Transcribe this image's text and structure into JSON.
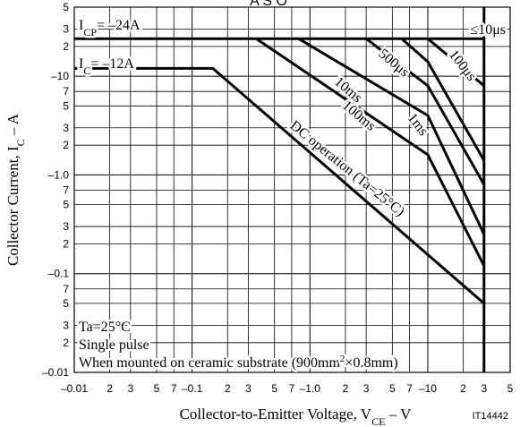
{
  "chart_data": {
    "type": "line",
    "title": "A S O",
    "x_label": [
      {
        "text": "Collector-to-Emitter Voltage, V"
      },
      {
        "text": "CE",
        "style": "sub"
      },
      {
        "text": " – V"
      }
    ],
    "y_label": [
      {
        "text": "Collector Current, I"
      },
      {
        "text": "C",
        "style": "sub"
      },
      {
        "text": " – A"
      }
    ],
    "figure_id": "IT14442",
    "xscale": "log",
    "yscale": "log",
    "grid": true,
    "xlim": [
      0.01,
      50
    ],
    "ylim": [
      0.01,
      50
    ],
    "xticks": [
      {
        "value": 0.01,
        "label": "–0.01"
      },
      0.02,
      0.03,
      0.05,
      0.07,
      {
        "value": 0.1,
        "label": "–0.1"
      },
      0.2,
      0.3,
      0.5,
      0.7,
      {
        "value": 1,
        "label": "–1.0"
      },
      2,
      3,
      5,
      7,
      {
        "value": 10,
        "label": "–10"
      },
      20,
      30,
      50
    ],
    "xtick_labels": [
      null,
      "2",
      "3",
      "5",
      "7",
      null,
      "2",
      "3",
      "5",
      "7",
      null,
      "2",
      "3",
      "5",
      "7",
      null,
      "2",
      "3",
      "5"
    ],
    "yticks": [
      {
        "value": 0.01,
        "label": "–0.01"
      },
      0.02,
      0.03,
      0.05,
      0.07,
      {
        "value": 0.1,
        "label": "–0.1"
      },
      0.2,
      0.3,
      0.5,
      0.7,
      {
        "value": 1,
        "label": "–1.0"
      },
      2,
      3,
      5,
      7,
      {
        "value": 10,
        "label": "–10"
      },
      20,
      30,
      50
    ],
    "ytick_labels": [
      null,
      "2",
      "3",
      "5",
      "7",
      null,
      "2",
      "3",
      "5",
      "7",
      null,
      "2",
      "3",
      "5",
      "7",
      null,
      "2",
      "3",
      "5"
    ],
    "series": [
      {
        "name": "DC operation (Ta=25°C)",
        "color": "#000000",
        "x": [
          0.01,
          0.15,
          30
        ],
        "values": [
          12,
          12,
          0.05
        ]
      },
      {
        "name": "100ms",
        "color": "#000000",
        "x": [
          0.35,
          10,
          30
        ],
        "values": [
          24,
          1.6,
          0.12
        ]
      },
      {
        "name": "10ms",
        "color": "#000000",
        "x": [
          0.8,
          10,
          30
        ],
        "values": [
          24,
          4,
          0.25
        ]
      },
      {
        "name": "1ms",
        "color": "#000000",
        "x": [
          3,
          10,
          30
        ],
        "values": [
          24,
          8,
          0.8
        ]
      },
      {
        "name": "500μs",
        "color": "#000000",
        "x": [
          6,
          10,
          30
        ],
        "values": [
          24,
          14,
          1.4
        ]
      },
      {
        "name": "100μs",
        "color": "#000000",
        "x": [
          10,
          30
        ],
        "values": [
          24,
          8
        ]
      },
      {
        "name": "I_CP limit",
        "color": "#000000",
        "x": [
          0.01,
          30
        ],
        "values": [
          24,
          24
        ]
      },
      {
        "name": "V_CE limit",
        "color": "#000000",
        "x": [
          30,
          30
        ],
        "values": [
          0.01,
          50
        ]
      }
    ],
    "annotations": [
      [
        {
          "text": "I"
        },
        {
          "text": "CP",
          "style": "sub"
        },
        {
          "text": "= –24A"
        }
      ],
      [
        {
          "text": "I"
        },
        {
          "text": "C",
          "style": "sub"
        },
        {
          "text": "= –12A"
        }
      ],
      [
        {
          "text": "≤10μs"
        }
      ],
      [
        {
          "text": "Ta=25°C"
        }
      ],
      [
        {
          "text": "Single pulse"
        }
      ],
      [
        {
          "text": "When mounted on ceramic substrate (900mm"
        },
        {
          "text": "2",
          "style": "sup"
        },
        {
          "text": "×0.8mm)"
        }
      ]
    ]
  }
}
